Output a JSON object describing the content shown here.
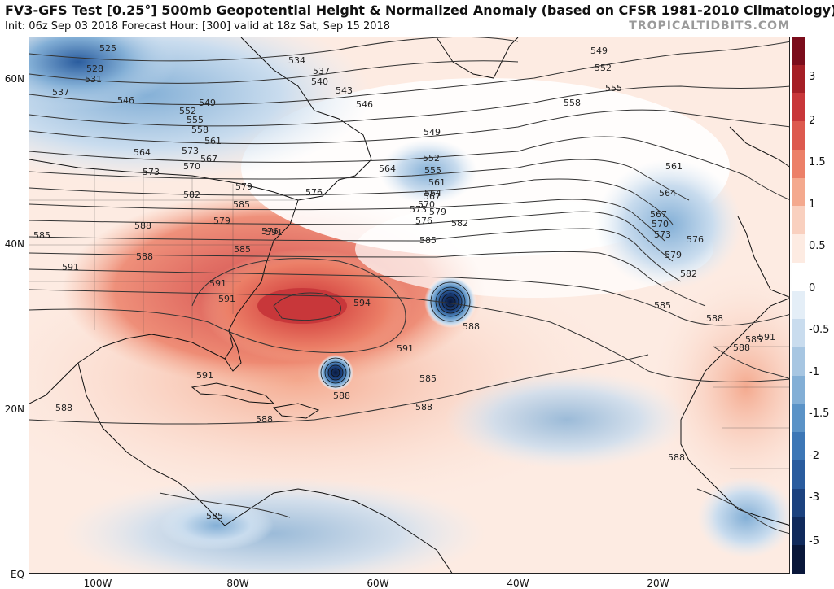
{
  "title": "FV3-GFS Test [0.25°] 500mb Geopotential Height & Normalized Anomaly (based on CFSR 1981-2010 Climatology)",
  "subtitle": "Init: 06z Sep 03 2018   Forecast Hour: [300]   valid at 18z Sat, Sep 15 2018",
  "credit": "TROPICALTIDBITS.COM",
  "lat_labels": [
    "60N",
    "40N",
    "20N",
    "EQ"
  ],
  "lon_labels": [
    "100W",
    "80W",
    "60W",
    "40W",
    "20W"
  ],
  "colorbar": {
    "labels": [
      "3",
      "2",
      "1.5",
      "1",
      "0.5",
      "0",
      "-0.5",
      "-1",
      "-1.5",
      "-2",
      "-3",
      "-5"
    ],
    "colors": [
      "#7b0d1c",
      "#a51f26",
      "#c8373a",
      "#dd5a4f",
      "#ec8068",
      "#f4a98e",
      "#f9d0bf",
      "#fdebe2",
      "#ffffff",
      "#e4eef7",
      "#c9dcee",
      "#a7c6e2",
      "#83afd6",
      "#5b93c7",
      "#3d77b6",
      "#2a5c9e",
      "#1c427f",
      "#102a5c",
      "#09173a"
    ]
  },
  "contour_labels": [
    {
      "text": "525"
    },
    {
      "text": "528"
    },
    {
      "text": "531"
    },
    {
      "text": "537"
    },
    {
      "text": "534"
    },
    {
      "text": "537"
    },
    {
      "text": "540"
    },
    {
      "text": "543"
    },
    {
      "text": "546"
    },
    {
      "text": "546"
    },
    {
      "text": "549"
    },
    {
      "text": "552"
    },
    {
      "text": "555"
    },
    {
      "text": "558"
    },
    {
      "text": "561"
    },
    {
      "text": "564"
    },
    {
      "text": "567"
    },
    {
      "text": "570"
    },
    {
      "text": "573"
    },
    {
      "text": "576"
    },
    {
      "text": "579"
    },
    {
      "text": "582"
    },
    {
      "text": "585"
    },
    {
      "text": "588"
    },
    {
      "text": "591"
    },
    {
      "text": "585"
    },
    {
      "text": "591"
    },
    {
      "text": "591"
    },
    {
      "text": "594"
    },
    {
      "text": "591"
    },
    {
      "text": "591"
    },
    {
      "text": "588"
    },
    {
      "text": "588"
    },
    {
      "text": "588"
    },
    {
      "text": "588"
    },
    {
      "text": "588"
    },
    {
      "text": "549"
    },
    {
      "text": "552"
    },
    {
      "text": "555"
    },
    {
      "text": "561"
    },
    {
      "text": "564"
    },
    {
      "text": "567"
    },
    {
      "text": "570"
    },
    {
      "text": "576"
    },
    {
      "text": "573"
    },
    {
      "text": "579"
    },
    {
      "text": "582"
    },
    {
      "text": "585"
    },
    {
      "text": "549"
    },
    {
      "text": "552"
    },
    {
      "text": "555"
    },
    {
      "text": "558"
    },
    {
      "text": "561"
    },
    {
      "text": "564"
    },
    {
      "text": "567"
    },
    {
      "text": "570"
    },
    {
      "text": "573"
    },
    {
      "text": "576"
    },
    {
      "text": "579"
    },
    {
      "text": "582"
    },
    {
      "text": "585"
    },
    {
      "text": "588"
    },
    {
      "text": "591"
    },
    {
      "text": "588"
    },
    {
      "text": "585"
    },
    {
      "text": "585"
    },
    {
      "text": "588"
    },
    {
      "text": "564"
    },
    {
      "text": "573"
    },
    {
      "text": "576"
    },
    {
      "text": "579"
    },
    {
      "text": "585"
    },
    {
      "text": "588"
    },
    {
      "text": "591"
    },
    {
      "text": "585"
    }
  ]
}
